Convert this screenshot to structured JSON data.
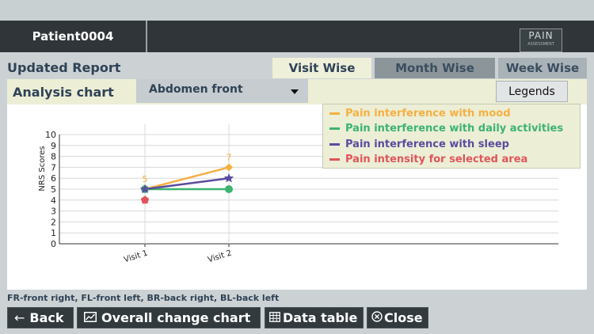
{
  "header": {
    "patient": "Patient0004",
    "logo_text": "PAIN",
    "logo_sub": "ASSESSMENT"
  },
  "report": {
    "title": "Updated Report",
    "tabs": [
      {
        "label": "Visit Wise",
        "active": true
      },
      {
        "label": "Month Wise",
        "active": false
      },
      {
        "label": "Week Wise",
        "active": false
      }
    ]
  },
  "analysis": {
    "title": "Analysis chart",
    "region_selected": "Abdomen front",
    "legends_button": "Legends"
  },
  "chart_data": {
    "type": "line",
    "ylabel": "NRS Scores",
    "xlabel": "",
    "ylim": [
      0,
      10
    ],
    "yticks": [
      "0",
      "1",
      "2",
      "3",
      "4",
      "5",
      "6",
      "7",
      "8",
      "9",
      "10"
    ],
    "categories": [
      "Visit 1",
      "Visit 2"
    ],
    "series": [
      {
        "name": "Pain interference with mood",
        "color": "#f5b041",
        "marker": "diamond",
        "values": [
          5,
          7
        ],
        "labels": [
          "5",
          "7"
        ]
      },
      {
        "name": "Pain interference with daily activities",
        "color": "#3cb371",
        "marker": "circle",
        "values": [
          5,
          5
        ]
      },
      {
        "name": "Pain interference with sleep",
        "color": "#5b4b9e",
        "marker": "star",
        "values": [
          5,
          6
        ]
      },
      {
        "name": "Pain intensity for selected area",
        "color": "#e0555a",
        "marker": "pentagon",
        "values": [
          4,
          null
        ]
      }
    ],
    "legend_position": "top-right",
    "grid": true
  },
  "footnote": "FR-front right, FL-front left, BR-back right, BL-back left",
  "buttons": {
    "back": "Back",
    "overall": "Overall change chart",
    "data_table": "Data table",
    "close": "Close"
  },
  "colors": {
    "header_bg": "#2f3538",
    "accent_text": "#2f4256",
    "panel_bg": "#eceed6"
  }
}
